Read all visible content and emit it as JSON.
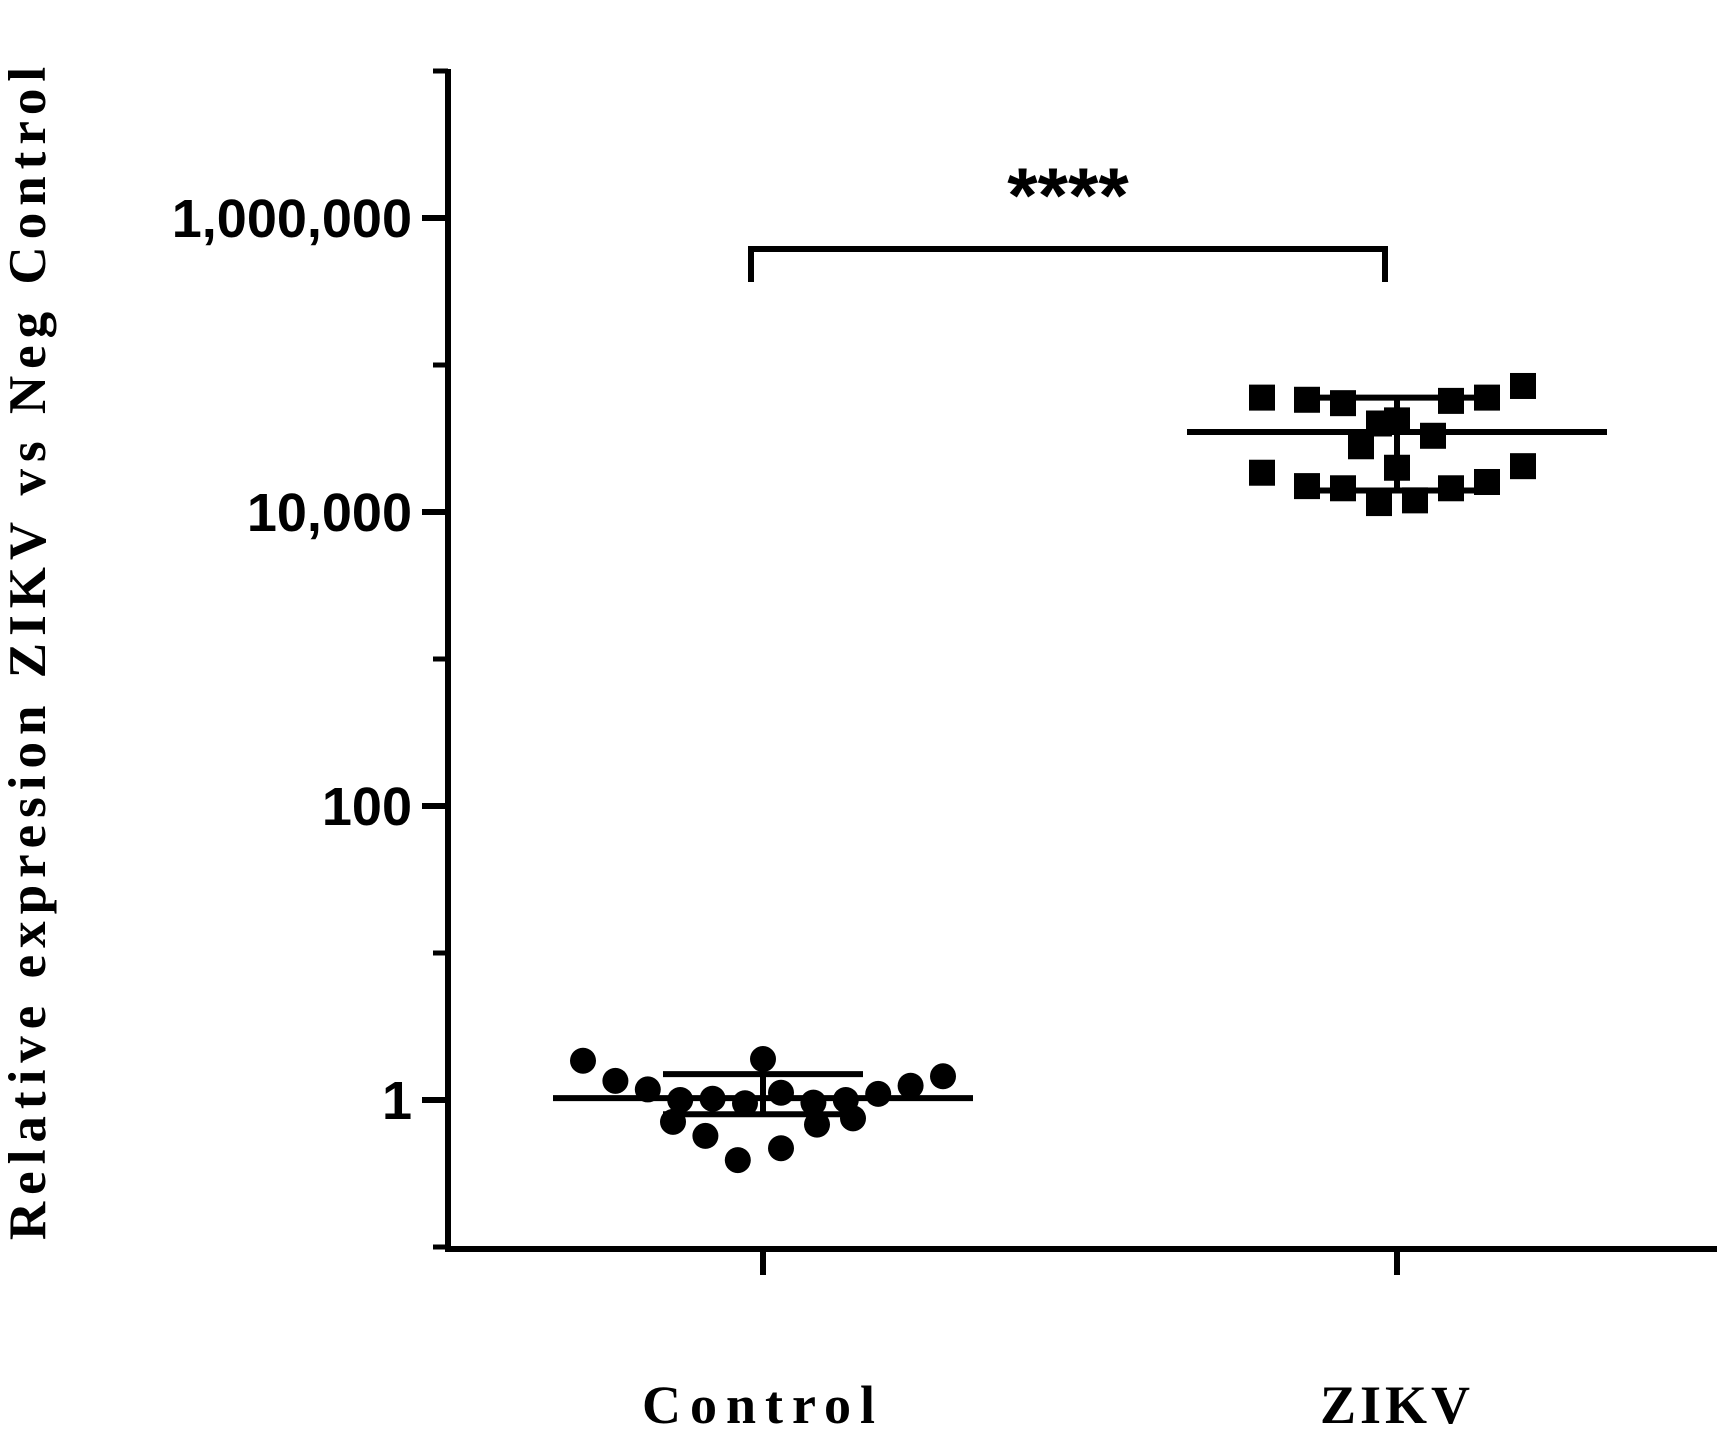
{
  "chart_data": {
    "type": "scatter",
    "title": "",
    "ylabel": "Relative expresion ZIKV vs Neg Control",
    "xlabel": "",
    "y_scale": "log",
    "ylim": [
      0.1,
      10000000
    ],
    "y_ticks": [
      {
        "value": 1,
        "label": "1"
      },
      {
        "value": 100,
        "label": "100"
      },
      {
        "value": 10000,
        "label": "10,000"
      },
      {
        "value": 1000000,
        "label": "1,000,000"
      }
    ],
    "categories": [
      "Control",
      "ZIKV"
    ],
    "grid": false,
    "series": [
      {
        "category": "Control",
        "marker": "circle",
        "points": [
          {
            "offset": -1.0,
            "value": 1.85
          },
          {
            "offset": -0.82,
            "value": 1.35
          },
          {
            "offset": -0.64,
            "value": 1.18
          },
          {
            "offset": -0.46,
            "value": 1.0
          },
          {
            "offset": -0.28,
            "value": 1.02
          },
          {
            "offset": -0.1,
            "value": 0.95
          },
          {
            "offset": 0.0,
            "value": 1.9
          },
          {
            "offset": 0.1,
            "value": 1.12
          },
          {
            "offset": 0.28,
            "value": 0.96
          },
          {
            "offset": 0.46,
            "value": 1.0
          },
          {
            "offset": 0.64,
            "value": 1.1
          },
          {
            "offset": 0.82,
            "value": 1.25
          },
          {
            "offset": 1.0,
            "value": 1.45
          },
          {
            "offset": -0.5,
            "value": 0.71
          },
          {
            "offset": -0.32,
            "value": 0.57
          },
          {
            "offset": -0.14,
            "value": 0.39
          },
          {
            "offset": 0.1,
            "value": 0.47
          },
          {
            "offset": 0.3,
            "value": 0.68
          },
          {
            "offset": 0.5,
            "value": 0.75
          }
        ],
        "mean": 1.03,
        "sd_lower": 0.8,
        "sd_upper": 1.5
      },
      {
        "category": "ZIKV",
        "marker": "square",
        "points": [
          {
            "offset": -0.75,
            "value": 60000
          },
          {
            "offset": -0.5,
            "value": 58000
          },
          {
            "offset": -0.3,
            "value": 55000
          },
          {
            "offset": -0.2,
            "value": 28000
          },
          {
            "offset": -0.1,
            "value": 40000
          },
          {
            "offset": 0.0,
            "value": 42000
          },
          {
            "offset": 0.0,
            "value": 20000
          },
          {
            "offset": 0.2,
            "value": 33000
          },
          {
            "offset": 0.3,
            "value": 57000
          },
          {
            "offset": 0.5,
            "value": 60000
          },
          {
            "offset": 0.7,
            "value": 72000
          },
          {
            "offset": -0.75,
            "value": 18500
          },
          {
            "offset": -0.5,
            "value": 15000
          },
          {
            "offset": -0.3,
            "value": 14500
          },
          {
            "offset": -0.1,
            "value": 11500
          },
          {
            "offset": 0.1,
            "value": 12000
          },
          {
            "offset": 0.3,
            "value": 14500
          },
          {
            "offset": 0.5,
            "value": 16000
          },
          {
            "offset": 0.7,
            "value": 20500
          }
        ],
        "mean": 35000,
        "sd_lower": 14000,
        "sd_upper": 60000
      }
    ],
    "annotations": [
      {
        "type": "bracket",
        "from": "Control",
        "to": "ZIKV",
        "label": "****"
      }
    ]
  }
}
